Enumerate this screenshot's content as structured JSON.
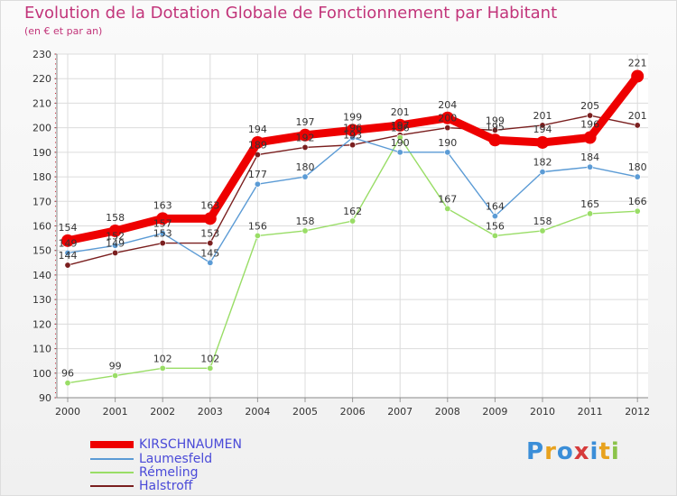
{
  "chart_data": {
    "type": "line",
    "title": "Evolution de la Dotation Globale de Fonctionnement par Habitant",
    "subtitle": "(en € et par an)",
    "categories": [
      "2000",
      "2001",
      "2002",
      "2003",
      "2004",
      "2005",
      "2006",
      "2007",
      "2008",
      "2009",
      "2010",
      "2011",
      "2012"
    ],
    "ylim": [
      90,
      230
    ],
    "yticks": [
      90,
      100,
      110,
      120,
      130,
      140,
      150,
      160,
      170,
      180,
      190,
      200,
      210,
      220,
      230
    ],
    "grid": true,
    "legend_position": "bottom-left",
    "series": [
      {
        "name": "KIRSCHNAUMEN",
        "color": "#ee0000",
        "values": [
          154,
          158,
          163,
          163,
          194,
          197,
          199,
          201,
          204,
          195,
          194,
          196,
          221
        ]
      },
      {
        "name": "Laumesfeld",
        "color": "#5b9bd5",
        "values": [
          149,
          152,
          157,
          145,
          177,
          180,
          196,
          190,
          190,
          164,
          182,
          184,
          180
        ]
      },
      {
        "name": "Rémeling",
        "color": "#99dd66",
        "values": [
          96,
          99,
          102,
          102,
          156,
          158,
          162,
          196,
          167,
          156,
          158,
          165,
          166
        ]
      },
      {
        "name": "Halstroff",
        "color": "#7a1f1f",
        "values": [
          144,
          149,
          153,
          153,
          189,
          192,
          193,
          197,
          200,
          199,
          201,
          205,
          201
        ]
      }
    ]
  },
  "brand": {
    "letters": [
      "P",
      "r",
      "o",
      "x",
      "i",
      "t",
      "i"
    ],
    "colors": [
      "#3b8ed8",
      "#e8a21e",
      "#3b8ed8",
      "#d63b3b",
      "#3b8ed8",
      "#e8a21e",
      "#8bc34a"
    ]
  }
}
